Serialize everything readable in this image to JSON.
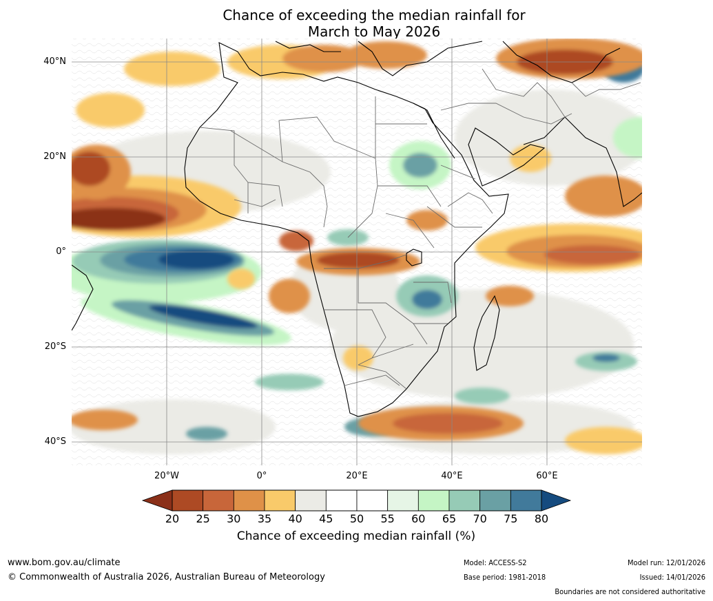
{
  "title": "Chance of exceeding the median rainfall for\nMarch to May 2026",
  "map": {
    "lat_labels": [
      "40°N",
      "20°N",
      "0°",
      "20°S",
      "40°S"
    ],
    "lon_labels": [
      "20°W",
      "0°",
      "20°E",
      "40°E",
      "60°E"
    ],
    "region": "Africa"
  },
  "colorbar": {
    "title": "Chance of exceeding median rainfall (%)",
    "ticks": [
      "20",
      "25",
      "30",
      "35",
      "40",
      "45",
      "50",
      "55",
      "60",
      "65",
      "70",
      "75",
      "80"
    ],
    "colors": [
      "#8b3019",
      "#ad4a24",
      "#c8663a",
      "#df9148",
      "#f9ca6a",
      "#ebebe6",
      "#ffffff",
      "#ffffff",
      "#e6f5e6",
      "#c5f5c5",
      "#96cbb6",
      "#6aa0a4",
      "#417a9b",
      "#154b7f"
    ]
  },
  "footer": {
    "website": "www.bom.gov.au/climate",
    "copyright": "© Commonwealth of Australia 2026, Australian Bureau of Meteorology",
    "model": "Model: ACCESS-S2",
    "base_period": "Base period: 1981-2018",
    "model_run": "Model run: 12/01/2026",
    "issued": "Issued: 14/01/2026",
    "boundaries": "Boundaries are not considered authoritative"
  }
}
